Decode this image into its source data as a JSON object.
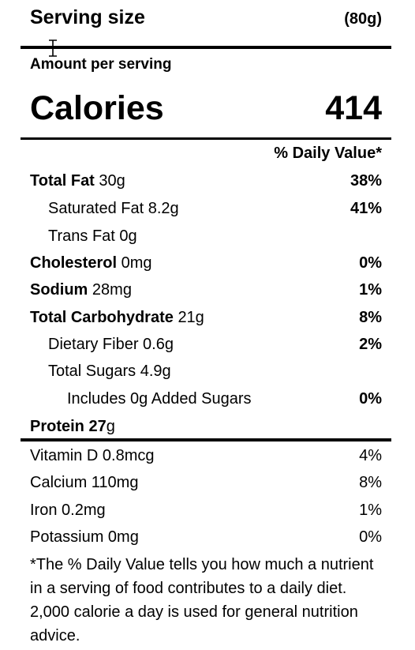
{
  "serving": {
    "label": "Serving size",
    "value": "(80g)"
  },
  "amount_per_serving": "Amount per serving",
  "calories": {
    "label": "Calories",
    "value": "414"
  },
  "daily_value_header": "% Daily Value*",
  "nutrients": [
    {
      "name": "Total Fat",
      "amount": "30g",
      "dv": "38%"
    },
    {
      "name": "Saturated Fat",
      "amount": "8.2g",
      "dv": "41%"
    },
    {
      "name": "Trans Fat",
      "amount": "0g",
      "dv": ""
    },
    {
      "name": "Cholesterol",
      "amount": "0mg",
      "dv": "0%"
    },
    {
      "name": "Sodium",
      "amount": "28mg",
      "dv": "1%"
    },
    {
      "name": "Total Carbohydrate",
      "amount": "21g",
      "dv": "8%"
    },
    {
      "name": "Dietary Fiber",
      "amount": "0.6g",
      "dv": "2%"
    },
    {
      "name": "Total Sugars",
      "amount": "4.9g",
      "dv": ""
    },
    {
      "name": "Includes 0g Added Sugars",
      "amount": "",
      "dv": "0%"
    },
    {
      "name": "Protein 27",
      "amount": "g",
      "dv": ""
    }
  ],
  "vitamins": [
    {
      "name": "Vitamin D 0.8mcg",
      "dv": "4%"
    },
    {
      "name": "Calcium 110mg",
      "dv": "8%"
    },
    {
      "name": "Iron 0.2mg",
      "dv": "1%"
    },
    {
      "name": "Potassium 0mg",
      "dv": "0%"
    }
  ],
  "footnote": "*The % Daily Value tells you how much a nutrient in a serving of food contributes to a daily diet. 2,000 calorie a day is used for general nutrition advice.",
  "cursor_icon": "text-cursor-icon"
}
